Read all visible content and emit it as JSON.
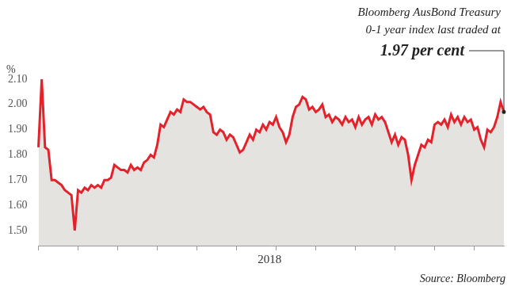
{
  "chart_data": {
    "type": "line",
    "ylabel": "%",
    "source": "Source: Bloomberg",
    "annotations": [
      {
        "lines": [
          "Bloomberg AusBond Treasury",
          "0-1 year index last traded at"
        ],
        "emphasis": "1.97 per cent"
      }
    ],
    "categories": [
      null,
      null,
      null,
      null,
      null,
      null,
      null,
      null,
      null,
      null,
      null,
      null,
      null,
      null,
      null,
      null,
      null,
      null,
      null,
      null,
      null,
      null,
      null,
      null,
      null,
      null,
      null,
      null,
      null,
      null,
      null,
      null,
      null,
      null,
      null,
      null,
      null,
      null,
      null,
      null,
      null,
      null,
      null,
      null,
      null,
      null,
      null,
      null,
      null,
      null,
      null,
      null,
      null,
      null,
      null,
      null,
      null,
      null,
      null,
      null,
      null,
      null,
      null,
      null,
      null,
      null,
      null,
      null,
      null,
      null,
      "2018",
      null,
      null,
      null,
      null,
      null,
      null,
      null,
      null,
      null,
      null,
      null,
      null,
      null,
      null,
      null,
      null,
      null,
      null,
      null,
      null,
      null,
      null,
      null,
      null,
      null,
      null,
      null,
      null,
      null,
      null,
      null,
      null,
      null,
      null,
      null,
      null,
      null,
      null,
      null,
      null,
      null,
      null,
      null,
      null,
      null,
      null,
      null,
      null,
      null,
      null,
      null,
      null,
      null,
      null,
      null,
      null,
      null,
      null,
      null,
      null,
      null,
      null,
      null,
      null,
      null,
      null,
      null,
      null,
      null,
      null,
      null
    ],
    "values": [
      1.83,
      2.1,
      1.83,
      1.82,
      1.7,
      1.7,
      1.69,
      1.68,
      1.66,
      1.65,
      1.64,
      1.5,
      1.66,
      1.65,
      1.67,
      1.66,
      1.68,
      1.67,
      1.68,
      1.67,
      1.7,
      1.7,
      1.71,
      1.76,
      1.75,
      1.74,
      1.74,
      1.73,
      1.76,
      1.74,
      1.75,
      1.74,
      1.77,
      1.78,
      1.8,
      1.79,
      1.84,
      1.92,
      1.91,
      1.94,
      1.97,
      1.96,
      1.98,
      1.97,
      2.02,
      2.01,
      2.01,
      2.0,
      1.99,
      1.98,
      1.99,
      1.97,
      1.96,
      1.89,
      1.88,
      1.9,
      1.89,
      1.86,
      1.88,
      1.87,
      1.84,
      1.81,
      1.82,
      1.85,
      1.88,
      1.86,
      1.9,
      1.89,
      1.92,
      1.9,
      1.93,
      1.92,
      1.95,
      1.91,
      1.89,
      1.85,
      1.88,
      1.95,
      1.99,
      2.0,
      2.03,
      2.02,
      1.98,
      1.99,
      1.97,
      1.98,
      2.0,
      1.95,
      1.96,
      1.93,
      1.95,
      1.94,
      1.92,
      1.95,
      1.93,
      1.94,
      1.91,
      1.95,
      1.92,
      1.94,
      1.95,
      1.92,
      1.96,
      1.94,
      1.95,
      1.93,
      1.89,
      1.85,
      1.88,
      1.84,
      1.87,
      1.86,
      1.8,
      1.7,
      1.76,
      1.8,
      1.84,
      1.83,
      1.86,
      1.85,
      1.92,
      1.93,
      1.92,
      1.94,
      1.91,
      1.96,
      1.93,
      1.95,
      1.92,
      1.95,
      1.93,
      1.94,
      1.9,
      1.91,
      1.86,
      1.83,
      1.9,
      1.89,
      1.91,
      1.95,
      2.01,
      1.97
    ],
    "color": "#e3222b",
    "ylim": [
      1.44,
      2.1
    ],
    "yticks": [
      {
        "value": 1.5,
        "label": "1.50"
      },
      {
        "value": 1.6,
        "label": "1.60"
      },
      {
        "value": 1.7,
        "label": "1.70"
      },
      {
        "value": 1.8,
        "label": "1.80"
      },
      {
        "value": 1.9,
        "label": "1.90"
      },
      {
        "value": 2.0,
        "label": "2.00"
      },
      {
        "value": 2.1,
        "label": "2.10"
      }
    ],
    "grid": false
  }
}
